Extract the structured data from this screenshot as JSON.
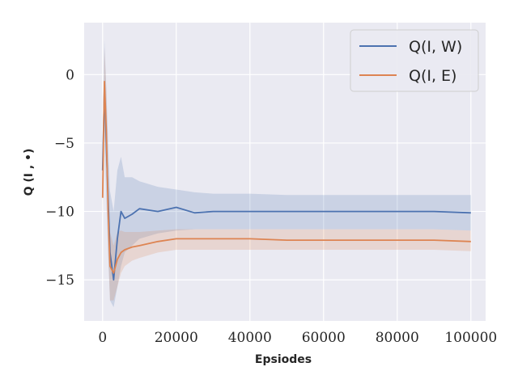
{
  "chart_data": {
    "type": "line",
    "title": "",
    "xlabel": "Epsiodes",
    "ylabel": "Q (I , •)",
    "xlim": [
      -5000,
      104000
    ],
    "ylim": [
      -18,
      3.8
    ],
    "xticks": [
      0,
      20000,
      40000,
      60000,
      80000,
      100000
    ],
    "xtick_labels": [
      "0",
      "20000",
      "40000",
      "60000",
      "80000",
      "100000"
    ],
    "yticks": [
      0,
      -5,
      -10,
      -15
    ],
    "ytick_labels": [
      "0",
      "−5",
      "−10",
      "−15"
    ],
    "grid": true,
    "legend_position": "top-right",
    "background": "#eaeaf2",
    "x": [
      0,
      500,
      1000,
      1500,
      2000,
      3000,
      4000,
      5000,
      6000,
      8000,
      10000,
      15000,
      20000,
      25000,
      30000,
      40000,
      50000,
      60000,
      70000,
      80000,
      90000,
      100000
    ],
    "series": [
      {
        "name": "Q(I, W)",
        "color": "#4c72b0",
        "values": [
          -7.0,
          -1.0,
          -5.0,
          -9.0,
          -13.0,
          -15.0,
          -12.0,
          -10.0,
          -10.5,
          -10.2,
          -9.8,
          -10.0,
          -9.7,
          -10.1,
          -10.0,
          -10.0,
          -10.0,
          -10.0,
          -10.0,
          -10.0,
          -10.0,
          -10.1
        ],
        "lower": [
          -9.0,
          -4.0,
          -9.0,
          -13.0,
          -16.5,
          -17.0,
          -15.5,
          -14.0,
          -13.0,
          -12.5,
          -12.0,
          -11.6,
          -11.4,
          -11.3,
          -11.3,
          -11.3,
          -11.3,
          -11.3,
          -11.3,
          -11.3,
          -11.3,
          -11.4
        ],
        "upper": [
          -5.0,
          2.5,
          -1.0,
          -5.0,
          -8.5,
          -10.0,
          -7.0,
          -6.0,
          -7.5,
          -7.5,
          -7.8,
          -8.2,
          -8.4,
          -8.6,
          -8.7,
          -8.7,
          -8.8,
          -8.8,
          -8.8,
          -8.8,
          -8.8,
          -8.8
        ]
      },
      {
        "name": "Q(I, E)",
        "color": "#dd8452",
        "values": [
          -9.0,
          -0.5,
          -4.0,
          -10.0,
          -14.0,
          -14.5,
          -13.5,
          -13.0,
          -12.8,
          -12.6,
          -12.5,
          -12.2,
          -12.0,
          -12.0,
          -12.0,
          -12.0,
          -12.1,
          -12.1,
          -12.1,
          -12.1,
          -12.1,
          -12.2
        ],
        "lower": [
          -10.5,
          -3.0,
          -7.0,
          -13.0,
          -16.5,
          -16.5,
          -15.5,
          -14.5,
          -14.0,
          -13.6,
          -13.4,
          -13.0,
          -12.8,
          -12.8,
          -12.8,
          -12.8,
          -12.8,
          -12.8,
          -12.8,
          -12.8,
          -12.8,
          -12.9
        ],
        "upper": [
          -7.5,
          2.0,
          -1.0,
          -7.0,
          -11.5,
          -12.5,
          -11.5,
          -11.4,
          -11.5,
          -11.5,
          -11.5,
          -11.4,
          -11.3,
          -11.3,
          -11.3,
          -11.3,
          -11.3,
          -11.3,
          -11.3,
          -11.3,
          -11.3,
          -11.4
        ]
      }
    ]
  }
}
